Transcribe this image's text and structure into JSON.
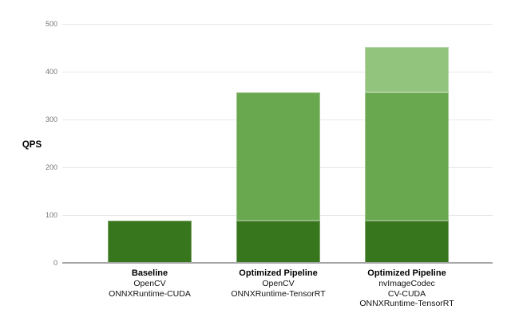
{
  "chart_data": {
    "type": "bar",
    "stacked": true,
    "title": "",
    "ylabel": "QPS",
    "xlabel": "",
    "ylim": [
      0,
      500
    ],
    "yticks": [
      0,
      100,
      200,
      300,
      400,
      500
    ],
    "grid": true,
    "legend_position": "none",
    "categories": [
      {
        "name": "Baseline",
        "sub_lines": [
          "OpenCV",
          "ONNXRuntime-CUDA"
        ]
      },
      {
        "name": "Optimized Pipeline",
        "sub_lines": [
          "OpenCV",
          "ONNXRuntime-TensorRT"
        ]
      },
      {
        "name": "Optimized Pipeline",
        "sub_lines": [
          "nvImageCodec",
          "CV-CUDA",
          "ONNXRuntime-TensorRT"
        ]
      }
    ],
    "series": [
      {
        "name": "segment-dark-green",
        "color": "#38761d",
        "values": [
          88,
          88,
          88
        ]
      },
      {
        "name": "segment-medium-green",
        "color": "#6aa84f",
        "values": [
          0,
          268,
          268
        ]
      },
      {
        "name": "segment-light-green",
        "color": "#93c47d",
        "values": [
          0,
          0,
          96
        ]
      }
    ],
    "bar_totals": [
      88,
      356,
      452
    ]
  },
  "colors": {
    "background": "#ffffff",
    "gridline": "#e8e8e8",
    "axis_line": "#a6a6a6",
    "tick_text": "#757575",
    "label_text": "#000000",
    "bar_dark_green": "#38761d",
    "bar_medium_green": "#6aa84f",
    "bar_light_green": "#93c47d"
  }
}
